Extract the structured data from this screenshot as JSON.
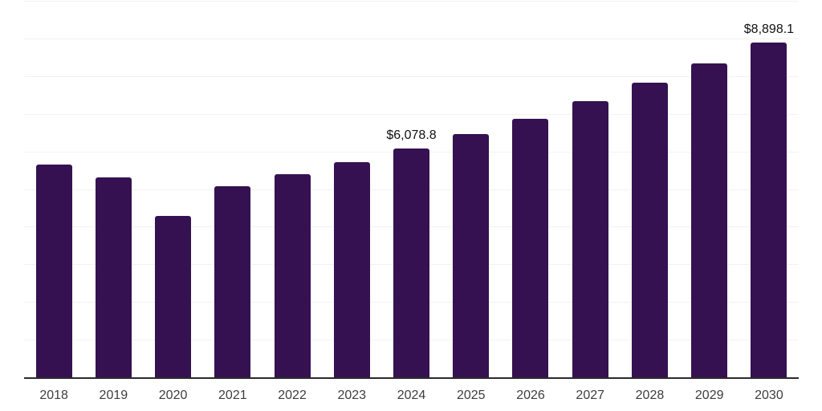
{
  "chart_data": {
    "type": "bar",
    "title": "",
    "xlabel": "",
    "ylabel": "",
    "categories": [
      "2018",
      "2019",
      "2020",
      "2021",
      "2022",
      "2023",
      "2024",
      "2025",
      "2026",
      "2027",
      "2028",
      "2029",
      "2030"
    ],
    "values": [
      5660,
      5320,
      4280,
      5085,
      5405,
      5725,
      6078.8,
      6470,
      6870,
      7340,
      7830,
      8340,
      8898.1
    ],
    "currency_prefix": "$",
    "data_labels_shown": {
      "2024": "$6,078.8",
      "2030": "$8,898.1"
    },
    "ylim": [
      0,
      10000
    ],
    "gridline_step": 1000,
    "grid": "horizontal",
    "legend_position": "none",
    "y_axis_tick_labels": "hidden",
    "colors": {
      "bar": "#351151",
      "axis": "#2b2b2b",
      "gridline": "#f2f2f3",
      "tick_label": "#3d3d3d",
      "value_label": "#111111",
      "background": "#ffffff"
    }
  }
}
